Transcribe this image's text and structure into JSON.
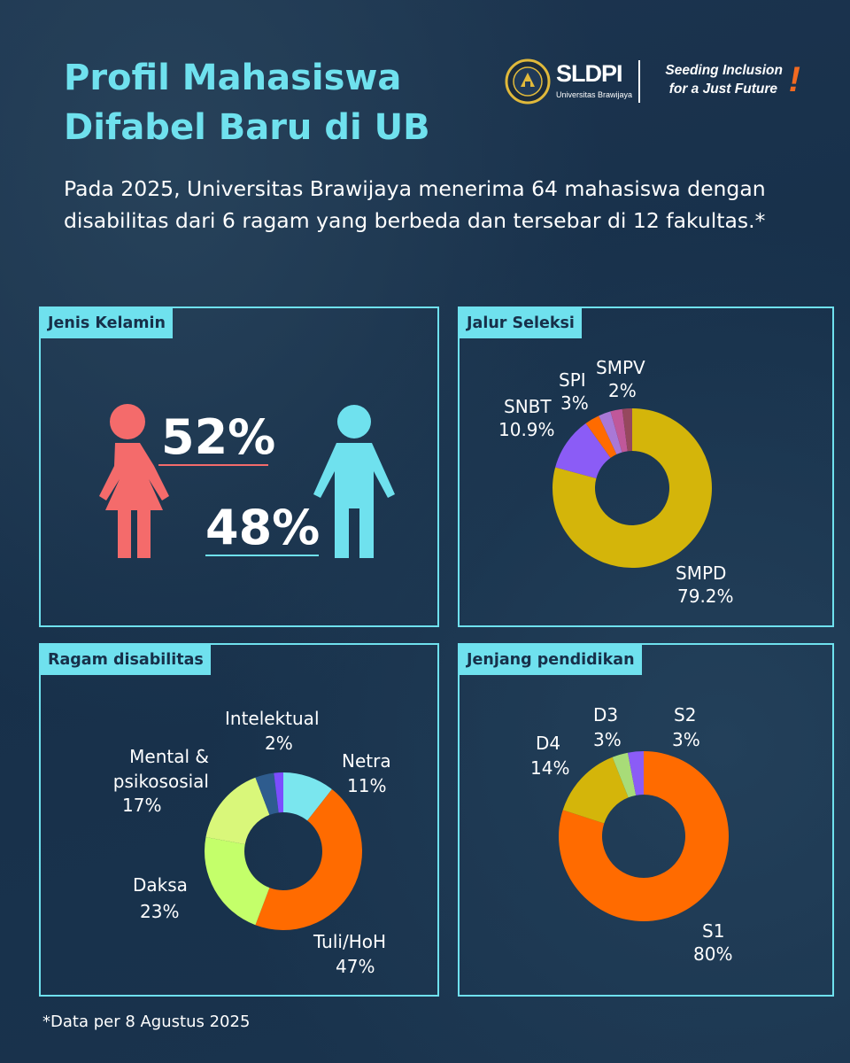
{
  "header": {
    "title_line1": "Profil Mahasiswa",
    "title_line2": "Difabel Baru di UB",
    "intro": "Pada 2025, Universitas Brawijaya menerima 64 mahasiswa dengan disabilitas dari 6 ragam yang berbeda dan tersebar di 12 fakultas.*"
  },
  "logo": {
    "name": "SLDPI",
    "subtitle": "Universitas Brawijaya",
    "tagline_line1": "Seeding Inclusion",
    "tagline_line2": "for a Just Future",
    "exclamation": "!"
  },
  "colors": {
    "accent": "#6fe1ee",
    "female": "#f46b6b",
    "male": "#6fe1ee",
    "orange": "#ff6b00",
    "gold": "#d4b50a",
    "purple": "#8b5cf6",
    "lime": "#c4ff6a"
  },
  "panels": {
    "gender": {
      "label": "Jenis Kelamin"
    },
    "selection": {
      "label": "Jalur Seleksi"
    },
    "disability": {
      "label": "Ragam disabilitas"
    },
    "education": {
      "label": "Jenjang pendidikan"
    }
  },
  "chart_data": [
    {
      "type": "pictograph",
      "title": "Jenis Kelamin",
      "series": [
        {
          "label": "52%",
          "value": 52,
          "icon": "female-person-icon",
          "color": "#f46b6b"
        },
        {
          "label": "48%",
          "value": 48,
          "icon": "male-person-icon",
          "color": "#6fe1ee"
        }
      ]
    },
    {
      "type": "pie",
      "title": "Jalur Seleksi",
      "slices": [
        {
          "name": "SMPD",
          "label": "79.2%",
          "value": 79.2,
          "color": "#d4b50a"
        },
        {
          "name": "SNBT",
          "label": "10.9%",
          "value": 10.9,
          "color": "#8b5cf6"
        },
        {
          "name": "SPI",
          "label": "3%",
          "value": 3,
          "color": "#ff6b00"
        },
        {
          "name": "",
          "label": "",
          "value": 2.5,
          "color": "#a978d6"
        },
        {
          "name": "",
          "label": "",
          "value": 2.4,
          "color": "#c0589a"
        },
        {
          "name": "SMPV",
          "label": "2%",
          "value": 2,
          "color": "#96485e"
        }
      ]
    },
    {
      "type": "pie",
      "title": "Ragam disabilitas",
      "slices": [
        {
          "name": "Netra",
          "label": "11%",
          "value": 11,
          "color": "#7ae6ee"
        },
        {
          "name": "Tuli/HoH",
          "label": "47%",
          "value": 47,
          "color": "#ff6b00"
        },
        {
          "name": "Daksa",
          "label": "23%",
          "value": 23,
          "color": "#c4ff6a"
        },
        {
          "name": "Mental & psikososial",
          "label": "17%",
          "value": 17,
          "color": "#d9f77a"
        },
        {
          "name": "",
          "label": "",
          "value": 4,
          "color": "#2e5c8e"
        },
        {
          "name": "Intelektual",
          "label": "2%",
          "value": 2,
          "color": "#7c4dff"
        }
      ]
    },
    {
      "type": "pie",
      "title": "Jenjang pendidikan",
      "slices": [
        {
          "name": "S1",
          "label": "80%",
          "value": 80,
          "color": "#ff6b00"
        },
        {
          "name": "D4",
          "label": "14%",
          "value": 14,
          "color": "#d4b50a"
        },
        {
          "name": "D3",
          "label": "3%",
          "value": 3,
          "color": "#a8dc78"
        },
        {
          "name": "S2",
          "label": "3%",
          "value": 3,
          "color": "#8b5cf6"
        }
      ]
    }
  ],
  "footnote": "*Data per 8 Agustus 2025"
}
